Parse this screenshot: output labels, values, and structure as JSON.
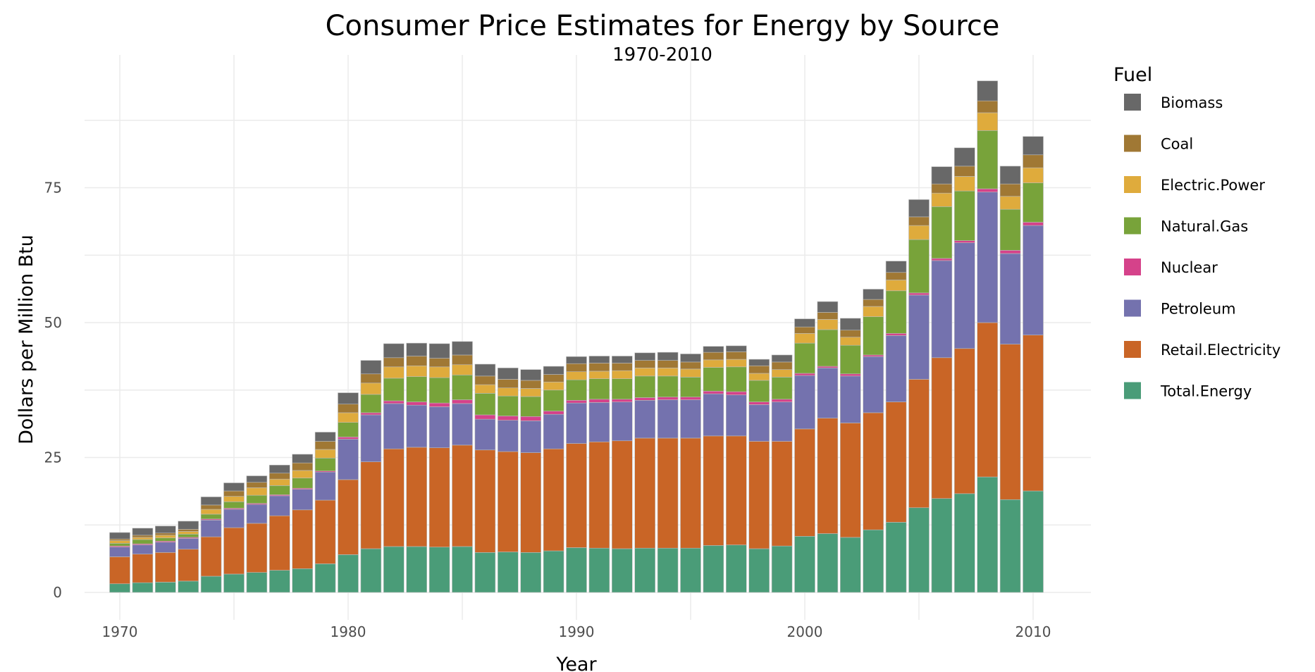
{
  "chart_data": {
    "type": "bar",
    "stacked": true,
    "title": "Consumer Price Estimates for Energy by Source",
    "subtitle": "1970-2010",
    "xlabel": "Year",
    "ylabel": "Dollars per Million Btu",
    "xlim": [
      1968,
      2012
    ],
    "ylim": [
      0,
      97
    ],
    "x_ticks": [
      1970,
      1980,
      1990,
      2000,
      2010
    ],
    "y_ticks": [
      0,
      25,
      50,
      75
    ],
    "grid": true,
    "legend": {
      "title": "Fuel",
      "placement": "right"
    },
    "x": [
      1970,
      1971,
      1972,
      1973,
      1974,
      1975,
      1976,
      1977,
      1978,
      1979,
      1980,
      1981,
      1982,
      1983,
      1984,
      1985,
      1986,
      1987,
      1988,
      1989,
      1990,
      1991,
      1992,
      1993,
      1994,
      1995,
      1996,
      1997,
      1998,
      1999,
      2000,
      2001,
      2002,
      2003,
      2004,
      2005,
      2006,
      2007,
      2008,
      2009,
      2010
    ],
    "series": [
      {
        "name": "Total.Energy",
        "color": "#4a9c78",
        "values": [
          1.6,
          1.8,
          1.9,
          2.1,
          3.0,
          3.4,
          3.7,
          4.1,
          4.4,
          5.3,
          7.0,
          8.1,
          8.5,
          8.5,
          8.4,
          8.5,
          7.4,
          7.5,
          7.4,
          7.7,
          8.3,
          8.2,
          8.1,
          8.2,
          8.2,
          8.2,
          8.7,
          8.8,
          8.1,
          8.6,
          10.4,
          10.9,
          10.2,
          11.6,
          13.0,
          15.7,
          17.4,
          18.3,
          21.4,
          17.2,
          18.8
        ]
      },
      {
        "name": "Retail.Electricity",
        "color": "#c96526",
        "values": [
          5.0,
          5.3,
          5.5,
          5.9,
          7.3,
          8.6,
          9.1,
          10.1,
          10.9,
          11.8,
          13.9,
          16.1,
          18.1,
          18.4,
          18.4,
          18.8,
          19.0,
          18.6,
          18.5,
          18.9,
          19.3,
          19.7,
          20.0,
          20.4,
          20.4,
          20.4,
          20.3,
          20.2,
          19.9,
          19.4,
          19.9,
          21.4,
          21.2,
          21.7,
          22.3,
          23.8,
          26.1,
          26.9,
          28.6,
          28.8,
          28.9
        ]
      },
      {
        "name": "Petroleum",
        "color": "#7472ae",
        "values": [
          1.8,
          1.7,
          1.9,
          2.0,
          3.1,
          3.4,
          3.5,
          3.7,
          3.8,
          5.2,
          7.5,
          8.7,
          8.4,
          7.8,
          7.6,
          7.7,
          5.7,
          5.8,
          5.9,
          6.4,
          7.5,
          7.3,
          7.2,
          7.0,
          7.1,
          7.1,
          7.8,
          7.6,
          6.8,
          7.3,
          9.9,
          9.3,
          8.7,
          10.4,
          12.3,
          15.6,
          18.0,
          19.6,
          24.2,
          16.8,
          20.3
        ]
      },
      {
        "name": "Nuclear",
        "color": "#d5428a",
        "values": [
          0.2,
          0.2,
          0.2,
          0.2,
          0.2,
          0.2,
          0.2,
          0.2,
          0.2,
          0.2,
          0.4,
          0.4,
          0.5,
          0.6,
          0.7,
          0.7,
          0.8,
          0.8,
          0.8,
          0.6,
          0.5,
          0.6,
          0.5,
          0.5,
          0.5,
          0.5,
          0.5,
          0.6,
          0.5,
          0.5,
          0.4,
          0.3,
          0.4,
          0.3,
          0.4,
          0.4,
          0.4,
          0.4,
          0.6,
          0.6,
          0.6
        ]
      },
      {
        "name": "Natural.Gas",
        "color": "#78a33a",
        "values": [
          0.5,
          0.8,
          0.6,
          0.6,
          0.9,
          1.2,
          1.5,
          1.7,
          1.9,
          2.4,
          2.7,
          3.4,
          4.2,
          4.7,
          4.7,
          4.6,
          4.0,
          3.7,
          3.7,
          3.9,
          3.8,
          3.8,
          3.8,
          4.0,
          3.9,
          3.7,
          4.4,
          4.6,
          4.0,
          4.1,
          5.6,
          6.8,
          5.3,
          7.1,
          7.9,
          9.9,
          9.6,
          9.2,
          10.8,
          7.6,
          7.3
        ]
      },
      {
        "name": "Electric.Power",
        "color": "#dfab3c",
        "values": [
          0.5,
          0.4,
          0.5,
          0.5,
          0.9,
          1.0,
          1.4,
          1.2,
          1.4,
          1.6,
          1.8,
          2.1,
          2.1,
          2.0,
          2.0,
          1.9,
          1.6,
          1.5,
          1.5,
          1.5,
          1.5,
          1.4,
          1.5,
          1.5,
          1.5,
          1.5,
          1.4,
          1.4,
          1.3,
          1.4,
          1.8,
          1.9,
          1.5,
          1.9,
          2.0,
          2.6,
          2.5,
          2.7,
          3.3,
          2.4,
          2.8
        ]
      },
      {
        "name": "Coal",
        "color": "#a07834",
        "values": [
          0.3,
          0.4,
          0.4,
          0.4,
          0.8,
          1.0,
          1.0,
          1.1,
          1.4,
          1.5,
          1.6,
          1.7,
          1.7,
          1.8,
          1.6,
          1.8,
          1.6,
          1.6,
          1.5,
          1.4,
          1.5,
          1.5,
          1.4,
          1.4,
          1.4,
          1.3,
          1.4,
          1.4,
          1.4,
          1.4,
          1.2,
          1.3,
          1.3,
          1.3,
          1.4,
          1.6,
          1.7,
          1.9,
          2.2,
          2.3,
          2.4
        ]
      },
      {
        "name": "Biomass",
        "color": "#686868",
        "values": [
          1.2,
          1.3,
          1.3,
          1.5,
          1.5,
          1.5,
          1.2,
          1.5,
          1.6,
          1.7,
          2.1,
          2.5,
          2.6,
          2.4,
          2.7,
          2.5,
          2.2,
          2.1,
          2.0,
          1.5,
          1.3,
          1.3,
          1.3,
          1.4,
          1.5,
          1.5,
          1.1,
          1.1,
          1.2,
          1.3,
          1.5,
          2.0,
          2.2,
          1.9,
          2.1,
          3.2,
          3.2,
          3.4,
          3.7,
          3.3,
          3.4
        ]
      }
    ],
    "legend_order": [
      "Biomass",
      "Coal",
      "Electric.Power",
      "Natural.Gas",
      "Nuclear",
      "Petroleum",
      "Retail.Electricity",
      "Total.Energy"
    ]
  }
}
